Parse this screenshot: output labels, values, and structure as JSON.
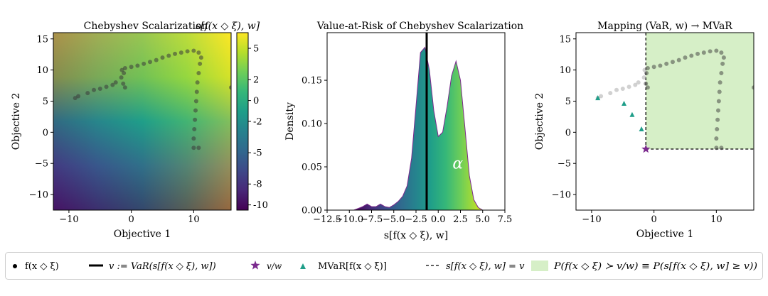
{
  "chart_data": [
    {
      "type": "heatmap",
      "title": "Chebyshev Scalarization",
      "title_math": "s[f(x ◇ ξ), w]",
      "xlabel": "Objective 1",
      "ylabel": "Objective 2",
      "xlim": [
        -12.5,
        16
      ],
      "ylim": [
        -12.5,
        16
      ],
      "xticks": [
        "−10",
        "0",
        "10"
      ],
      "yticks": [
        "−10",
        "−5",
        "0",
        "5",
        "10",
        "15"
      ],
      "colormap": "viridis",
      "colorbar": {
        "range": [
          -10.5,
          6.5
        ],
        "ticks": [
          "5",
          "2",
          "0",
          "-2",
          "-5",
          "-8",
          "-10"
        ]
      },
      "points": [
        [
          -9,
          5.5
        ],
        [
          -8.5,
          5.8
        ],
        [
          -7,
          6.3
        ],
        [
          -6,
          6.8
        ],
        [
          -5,
          7.0
        ],
        [
          -4,
          7.3
        ],
        [
          -3,
          7.6
        ],
        [
          -2.5,
          8.0
        ],
        [
          -1.6,
          8.8
        ],
        [
          -1.3,
          7.8
        ],
        [
          -1.0,
          7.2
        ],
        [
          -1.2,
          9.5
        ],
        [
          -1.5,
          10.0
        ],
        [
          -1.0,
          10.3
        ],
        [
          0,
          10.5
        ],
        [
          1,
          10.7
        ],
        [
          2,
          11.0
        ],
        [
          3,
          11.3
        ],
        [
          4,
          11.6
        ],
        [
          5,
          12.0
        ],
        [
          6,
          12.3
        ],
        [
          7,
          12.6
        ],
        [
          8,
          12.8
        ],
        [
          9,
          13.0
        ],
        [
          10,
          13.1
        ],
        [
          10.8,
          12.8
        ],
        [
          11.2,
          12.0
        ],
        [
          11.0,
          11.0
        ],
        [
          10.8,
          9.5
        ],
        [
          10.6,
          8.0
        ],
        [
          10.5,
          6.5
        ],
        [
          10.4,
          5.0
        ],
        [
          10.3,
          3.5
        ],
        [
          10.2,
          2.0
        ],
        [
          10.1,
          0.5
        ],
        [
          10.0,
          -1.0
        ],
        [
          10.0,
          -2.5
        ],
        [
          10.8,
          -2.5
        ],
        [
          16,
          7.2
        ]
      ]
    },
    {
      "type": "area",
      "title": "Value-at-Risk of Chebyshev Scalarization",
      "xlabel": "s[f(x ◇ ξ), w]",
      "ylabel": "Density",
      "xlim": [
        -12.5,
        7.5
      ],
      "ylim": [
        0,
        0.205
      ],
      "xticks": [
        "−12.5",
        "−10.0",
        "−7.5",
        "−5.0",
        "−2.5",
        "0.0",
        "2.5",
        "5.0",
        "7.5"
      ],
      "yticks": [
        "0.00",
        "0.05",
        "0.10",
        "0.15"
      ],
      "var_line_x": -1.3,
      "annotation": "α",
      "x": [
        -9.5,
        -9.0,
        -8.5,
        -8.0,
        -7.5,
        -7.0,
        -6.5,
        -6.0,
        -5.5,
        -5.0,
        -4.5,
        -4.0,
        -3.5,
        -3.0,
        -2.5,
        -2.0,
        -1.5,
        -1.0,
        -0.5,
        0.0,
        0.5,
        1.0,
        1.5,
        2.0,
        2.5,
        3.0,
        3.5,
        4.0,
        4.5,
        5.0,
        5.5,
        6.0
      ],
      "y": [
        0.0,
        0.002,
        0.004,
        0.007,
        0.004,
        0.004,
        0.007,
        0.004,
        0.003,
        0.006,
        0.01,
        0.016,
        0.028,
        0.06,
        0.12,
        0.182,
        0.188,
        0.162,
        0.115,
        0.085,
        0.09,
        0.12,
        0.155,
        0.172,
        0.15,
        0.095,
        0.04,
        0.012,
        0.003,
        0.0,
        0.0,
        0.0
      ]
    },
    {
      "type": "scatter",
      "title": "Mapping (VaR, w) → MVaR",
      "xlabel": "Objective 1",
      "ylabel": "Objective 2",
      "xlim": [
        -12.5,
        16
      ],
      "ylim": [
        -12.5,
        16
      ],
      "xticks": [
        "−10",
        "0",
        "10"
      ],
      "yticks": [
        "−10",
        "−5",
        "0",
        "5",
        "10",
        "15"
      ],
      "star": [
        -1.3,
        -2.7
      ],
      "triangles": [
        [
          -9,
          5.5
        ],
        [
          -4.8,
          4.6
        ],
        [
          -3.5,
          2.8
        ],
        [
          -2.0,
          0.5
        ]
      ],
      "region": {
        "x_min": -1.3,
        "y_min": -2.7
      },
      "points": [
        [
          -9,
          5.5
        ],
        [
          -8.5,
          5.8
        ],
        [
          -7,
          6.3
        ],
        [
          -6,
          6.8
        ],
        [
          -5,
          7.0
        ],
        [
          -4,
          7.3
        ],
        [
          -3,
          7.6
        ],
        [
          -2.5,
          8.0
        ],
        [
          -1.6,
          8.8
        ],
        [
          -1.3,
          7.8
        ],
        [
          -1.0,
          7.2
        ],
        [
          -1.2,
          9.5
        ],
        [
          -1.5,
          10.0
        ],
        [
          -1.0,
          10.3
        ],
        [
          0,
          10.5
        ],
        [
          1,
          10.7
        ],
        [
          2,
          11.0
        ],
        [
          3,
          11.3
        ],
        [
          4,
          11.6
        ],
        [
          5,
          12.0
        ],
        [
          6,
          12.3
        ],
        [
          7,
          12.6
        ],
        [
          8,
          12.8
        ],
        [
          9,
          13.0
        ],
        [
          10,
          13.1
        ],
        [
          10.8,
          12.8
        ],
        [
          11.2,
          12.0
        ],
        [
          11.0,
          11.0
        ],
        [
          10.8,
          9.5
        ],
        [
          10.6,
          8.0
        ],
        [
          10.5,
          6.5
        ],
        [
          10.4,
          5.0
        ],
        [
          10.3,
          3.5
        ],
        [
          10.2,
          2.0
        ],
        [
          10.1,
          0.5
        ],
        [
          10.0,
          -1.0
        ],
        [
          10.0,
          -2.5
        ],
        [
          10.8,
          -2.5
        ],
        [
          16,
          7.2
        ]
      ]
    }
  ],
  "legend": [
    "f(x ◇ ξ)",
    "v := VaR(s[f(x ◇ ξ), w])",
    "v/w",
    "MVaR[f(x ◇ ξ)]",
    "s[f(x ◇ ξ), w] = v",
    "P(f(x ◇ ξ) ≻ v/w) ≡ P(s[f(x ◇ ξ), w] ≥ v))"
  ],
  "colors": {
    "viridis": [
      "#440154",
      "#482878",
      "#3e4989",
      "#31688e",
      "#26828e",
      "#1f9e89",
      "#35b779",
      "#6ece58",
      "#b5de2b",
      "#fde725"
    ],
    "region": "#d6efc7",
    "star": "#7b2a8e",
    "triangle": "#1f9e89",
    "points": "#555555"
  }
}
